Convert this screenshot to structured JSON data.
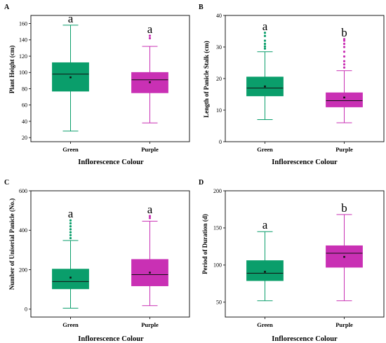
{
  "chart_data": [
    {
      "type": "box",
      "panel": "A",
      "ylabel": "Plant Height (cm)",
      "xlabel": "Inflorescence Colour",
      "categories": [
        "Green",
        "Purple"
      ],
      "ylim": [
        15,
        170
      ],
      "yticks": [
        20,
        40,
        60,
        80,
        100,
        120,
        140,
        160
      ],
      "colors": [
        "#0a9e6b",
        "#c930b4"
      ],
      "boxes": [
        {
          "min": 28,
          "q1": 77,
          "median": 98,
          "q3": 112,
          "max": 158,
          "mean": 94,
          "outliers": [],
          "letter": "a"
        },
        {
          "min": 38,
          "q1": 75,
          "median": 91,
          "q3": 100,
          "max": 132,
          "mean": 88,
          "outliers": [
            142,
            145
          ],
          "letter": "a"
        }
      ]
    },
    {
      "type": "box",
      "panel": "B",
      "ylabel": "Length of Panicle Stalk (cm)",
      "xlabel": "Inflorescence Colour",
      "categories": [
        "Green",
        "Purple"
      ],
      "ylim": [
        0,
        40
      ],
      "yticks": [
        0,
        10,
        20,
        30,
        40
      ],
      "colors": [
        "#0a9e6b",
        "#c930b4"
      ],
      "boxes": [
        {
          "min": 7,
          "q1": 14.5,
          "median": 17,
          "q3": 20.5,
          "max": 28.5,
          "mean": 17.5,
          "outliers": [
            29.5,
            30.2,
            31,
            32,
            33.5,
            34.5
          ],
          "letter": "a"
        },
        {
          "min": 6,
          "q1": 11,
          "median": 13,
          "q3": 15.5,
          "max": 22.5,
          "mean": 14,
          "outliers": [
            23.5,
            24.5,
            25.5,
            27,
            28.5,
            30,
            31,
            32,
            32.5
          ],
          "letter": "b"
        }
      ]
    },
    {
      "type": "box",
      "panel": "C",
      "ylabel": "Number of Uniserial Panicle (No.)",
      "xlabel": "Inflorescence Colour",
      "categories": [
        "Green",
        "Purple"
      ],
      "ylim": [
        -40,
        600
      ],
      "yticks": [
        0,
        200,
        400,
        600
      ],
      "colors": [
        "#0a9e6b",
        "#c930b4"
      ],
      "boxes": [
        {
          "min": 5,
          "q1": 103,
          "median": 140,
          "q3": 203,
          "max": 348,
          "mean": 160,
          "outliers": [
            360,
            375,
            390,
            405,
            420,
            435,
            450
          ],
          "letter": "a"
        },
        {
          "min": 18,
          "q1": 118,
          "median": 175,
          "q3": 252,
          "max": 446,
          "mean": 185,
          "outliers": [
            462,
            472
          ],
          "letter": "a"
        }
      ]
    },
    {
      "type": "box",
      "panel": "D",
      "ylabel": "Period of Duration (d)",
      "xlabel": "Inflorescence Colour",
      "categories": [
        "Green",
        "Purple"
      ],
      "ylim": [
        30,
        200
      ],
      "yticks": [
        50,
        100,
        150,
        200
      ],
      "colors": [
        "#0a9e6b",
        "#c930b4"
      ],
      "boxes": [
        {
          "min": 52,
          "q1": 79,
          "median": 89,
          "q3": 106,
          "max": 145,
          "mean": 91,
          "outliers": [],
          "letter": "a"
        },
        {
          "min": 52,
          "q1": 97,
          "median": 116,
          "q3": 126,
          "max": 168,
          "mean": 111,
          "outliers": [],
          "letter": "b"
        }
      ]
    }
  ]
}
